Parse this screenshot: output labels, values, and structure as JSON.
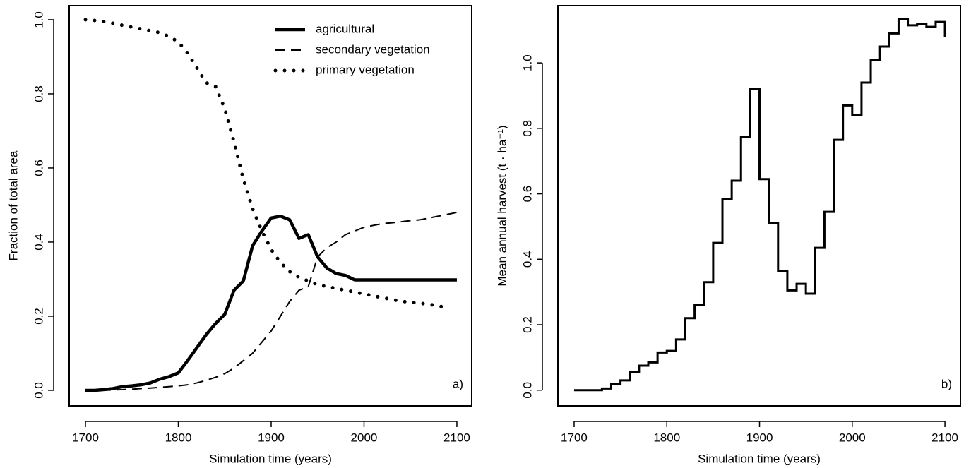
{
  "chart_data": [
    {
      "type": "line",
      "xlabel": "Simulation time (years)",
      "ylabel": "Fraction of total area",
      "panel_label": "a)",
      "legend": "topright",
      "x": [
        1700,
        1710,
        1720,
        1730,
        1740,
        1750,
        1760,
        1770,
        1780,
        1790,
        1800,
        1810,
        1820,
        1830,
        1840,
        1850,
        1860,
        1870,
        1880,
        1890,
        1900,
        1910,
        1920,
        1930,
        1940,
        1950,
        1960,
        1970,
        1980,
        1990,
        2000,
        2010,
        2020,
        2030,
        2040,
        2050,
        2060,
        2070,
        2080,
        2090,
        2100
      ],
      "series": [
        {
          "name": "agricultural",
          "color": "#000000",
          "style": "solid",
          "values": [
            0,
            0,
            0.002,
            0.005,
            0.01,
            0.012,
            0.015,
            0.02,
            0.03,
            0.037,
            0.047,
            0.08,
            0.115,
            0.15,
            0.18,
            0.205,
            0.27,
            0.295,
            0.39,
            0.43,
            0.465,
            0.47,
            0.46,
            0.41,
            0.42,
            0.36,
            0.33,
            0.315,
            0.31,
            0.298,
            0.298,
            0.298,
            0.298,
            0.298,
            0.298,
            0.298,
            0.298,
            0.298,
            0.298,
            0.298,
            0.298
          ]
        },
        {
          "name": "secondary vegetation",
          "color": "#000000",
          "style": "dashed",
          "values": [
            0,
            0,
            0,
            0.001,
            0.002,
            0.003,
            0.005,
            0.006,
            0.008,
            0.01,
            0.012,
            0.015,
            0.02,
            0.027,
            0.035,
            0.045,
            0.06,
            0.08,
            0.1,
            0.13,
            0.16,
            0.2,
            0.24,
            0.27,
            0.28,
            0.36,
            0.385,
            0.4,
            0.42,
            0.43,
            0.44,
            0.445,
            0.45,
            0.452,
            0.455,
            0.458,
            0.46,
            0.465,
            0.47,
            0.475,
            0.48
          ]
        },
        {
          "name": "primary vegetation",
          "color": "#000000",
          "style": "dotted",
          "values": [
            1.0,
            0.998,
            0.995,
            0.99,
            0.985,
            0.98,
            0.975,
            0.97,
            0.965,
            0.955,
            0.94,
            0.91,
            0.87,
            0.83,
            0.82,
            0.76,
            0.67,
            0.57,
            0.49,
            0.43,
            0.38,
            0.345,
            0.32,
            0.305,
            0.295,
            0.285,
            0.28,
            0.275,
            0.27,
            0.265,
            0.26,
            0.255,
            0.25,
            0.245,
            0.24,
            0.238,
            0.235,
            0.232,
            0.228,
            0.222,
            null
          ]
        }
      ],
      "xlim": [
        1682.5,
        2116
      ],
      "xticks": [
        1700,
        1800,
        1900,
        2000,
        2100
      ],
      "ylim": [
        -0.042,
        1.038
      ],
      "yticks": [
        {
          "value": 0,
          "label": "0.0"
        },
        0.2,
        0.4,
        0.6,
        0.8,
        {
          "value": 1,
          "label": "1.0"
        }
      ]
    },
    {
      "type": "step",
      "xlabel": "Simulation time (years)",
      "ylabel": "Mean annual harvest (t · ha⁻¹)",
      "panel_label": "b)",
      "color": "#000000",
      "x": [
        1700,
        1710,
        1720,
        1730,
        1740,
        1750,
        1760,
        1770,
        1780,
        1790,
        1800,
        1810,
        1820,
        1830,
        1840,
        1850,
        1860,
        1870,
        1880,
        1890,
        1900,
        1910,
        1920,
        1930,
        1940,
        1950,
        1960,
        1970,
        1980,
        1990,
        2000,
        2010,
        2020,
        2030,
        2040,
        2050,
        2060,
        2070,
        2080,
        2090,
        2100
      ],
      "values": [
        0,
        0,
        0,
        0.005,
        0.02,
        0.03,
        0.055,
        0.075,
        0.085,
        0.115,
        0.12,
        0.155,
        0.22,
        0.26,
        0.33,
        0.45,
        0.585,
        0.64,
        0.775,
        0.92,
        0.645,
        0.51,
        0.365,
        0.305,
        0.325,
        0.295,
        0.435,
        0.545,
        0.765,
        0.87,
        0.84,
        0.94,
        1.01,
        1.05,
        1.09,
        1.135,
        1.115,
        1.12,
        1.11,
        1.125,
        1.08
      ],
      "xlim": [
        1682.5,
        2116.7
      ],
      "xticks": [
        1700,
        1800,
        1900,
        2000,
        2100
      ],
      "ylim": [
        -0.048,
        1.175
      ],
      "yticks": [
        {
          "value": 0,
          "label": "0.0"
        },
        0.2,
        0.4,
        0.6,
        0.8,
        {
          "value": 1,
          "label": "1.0"
        }
      ]
    }
  ]
}
